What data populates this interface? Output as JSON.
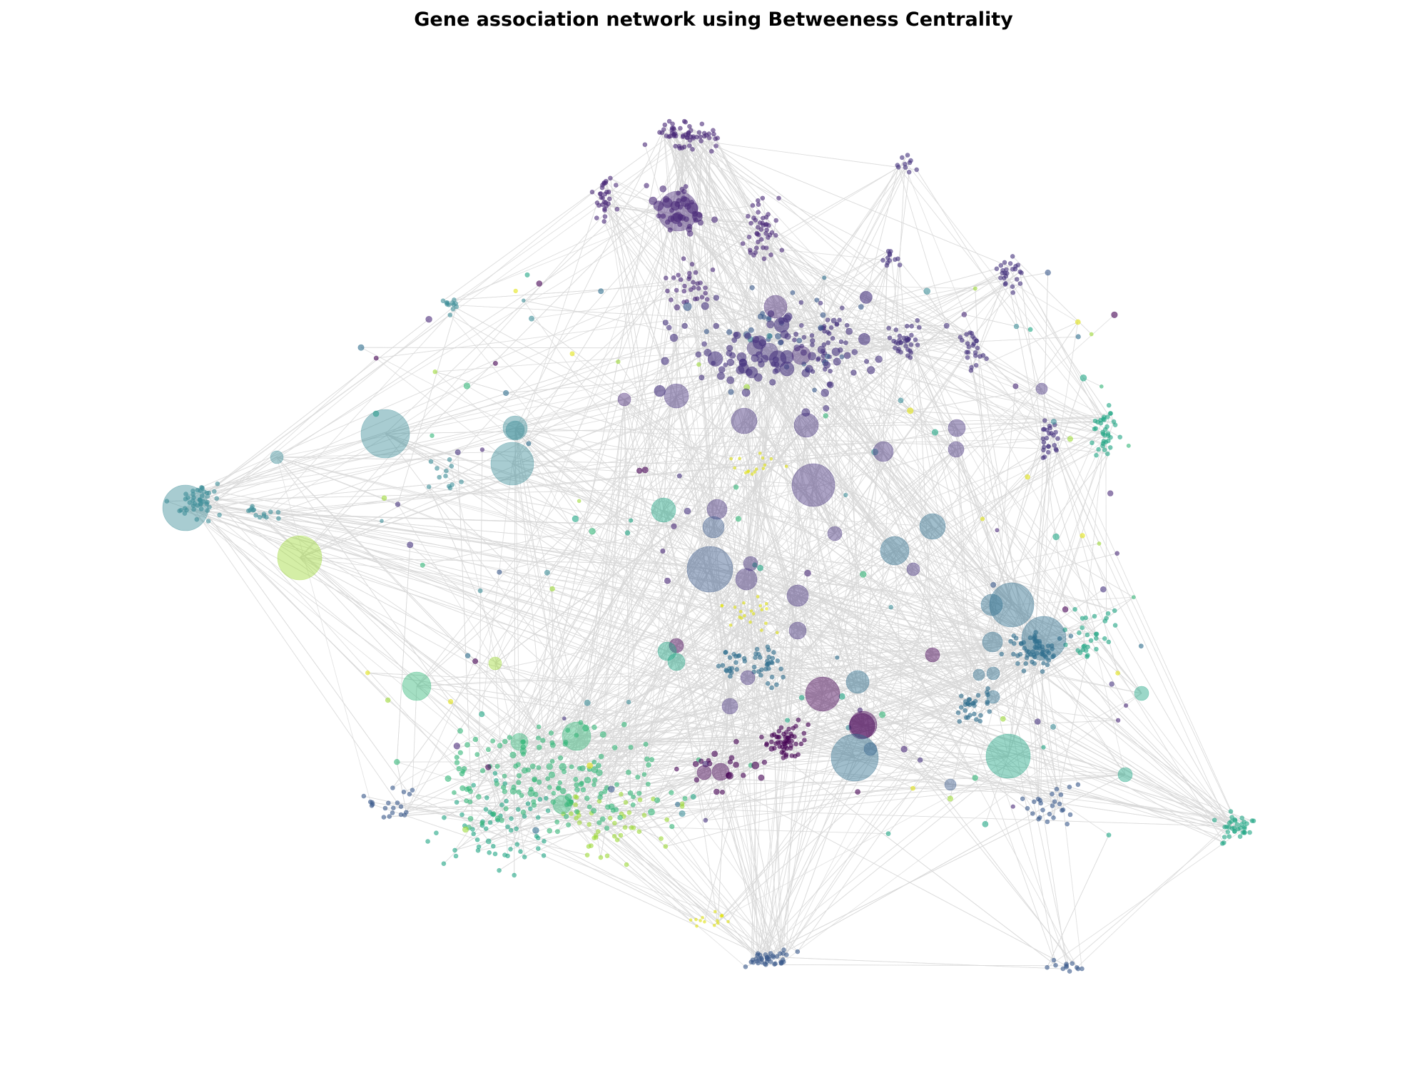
{
  "title": "Gene association network using Betweeness Centrality",
  "network": {
    "edge_color": "#d9d9d9",
    "colormap": "viridis",
    "communities": [
      {
        "id": "top-cluster",
        "color": "#4b2c7a"
      },
      {
        "id": "center-cluster",
        "color": "#46337e"
      },
      {
        "id": "left-cluster",
        "color": "#3f8f9a"
      },
      {
        "id": "right-cluster",
        "color": "#2f6e8e"
      },
      {
        "id": "bottom-left-cluster",
        "color": "#35b779"
      },
      {
        "id": "bottom-center-cluster",
        "color": "#440154"
      },
      {
        "id": "light-green-cluster",
        "color": "#9fda3a"
      },
      {
        "id": "yellow-cluster",
        "color": "#e2e418"
      },
      {
        "id": "teal-cluster",
        "color": "#21a685"
      },
      {
        "id": "blue-cluster",
        "color": "#3b5a8c"
      }
    ]
  }
}
